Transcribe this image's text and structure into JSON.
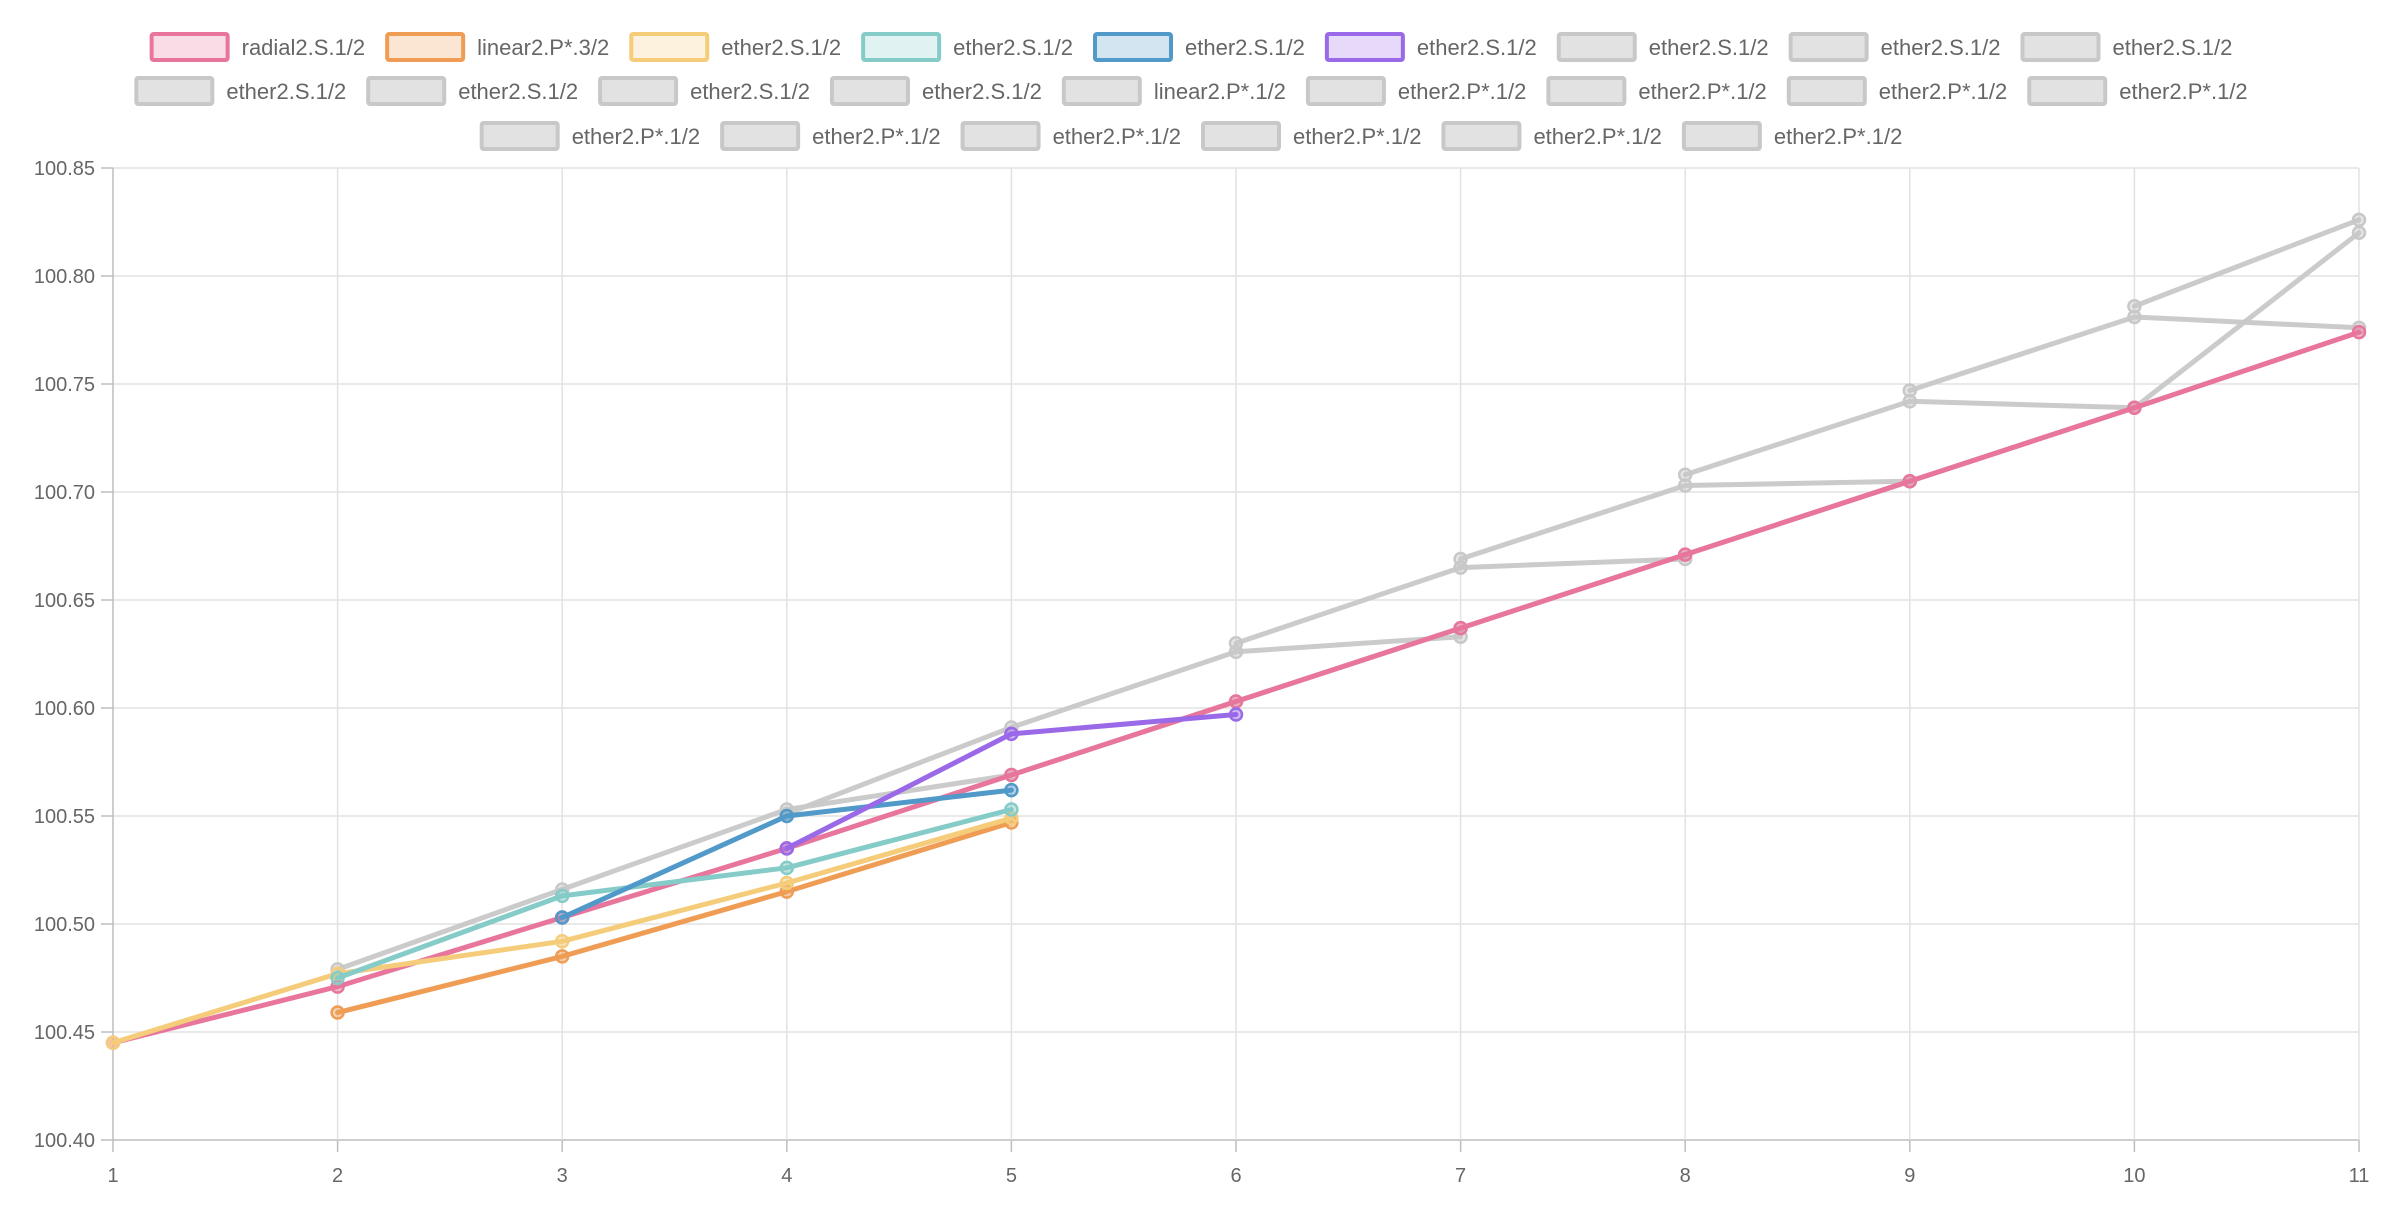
{
  "chart_data": {
    "type": "line",
    "x": [
      1,
      2,
      3,
      4,
      5,
      6,
      7,
      8,
      9,
      10,
      11
    ],
    "xlim": [
      1,
      11
    ],
    "ylim": [
      100.4,
      100.85
    ],
    "y_ticks": [
      "100.40",
      "100.45",
      "100.50",
      "100.55",
      "100.60",
      "100.65",
      "100.70",
      "100.75",
      "100.80",
      "100.85"
    ],
    "x_ticks": [
      "1",
      "2",
      "3",
      "4",
      "5",
      "6",
      "7",
      "8",
      "9",
      "10",
      "11"
    ],
    "grid": true,
    "legend_position": "top",
    "series": [
      {
        "name": "radial2.S.1/2",
        "color": "#e8769c",
        "active": true,
        "points": [
          [
            1,
            100.445
          ],
          [
            2,
            100.471
          ],
          [
            3,
            100.503
          ],
          [
            4,
            100.535
          ],
          [
            5,
            100.569
          ],
          [
            6,
            100.603
          ],
          [
            7,
            100.637
          ],
          [
            8,
            100.671
          ],
          [
            9,
            100.705
          ],
          [
            10,
            100.739
          ],
          [
            11,
            100.774
          ]
        ]
      },
      {
        "name": "linear2.P*.3/2",
        "color": "#ef9d55",
        "active": true,
        "points": [
          [
            2,
            100.459
          ],
          [
            3,
            100.485
          ],
          [
            4,
            100.515
          ],
          [
            5,
            100.547
          ]
        ]
      },
      {
        "name": "ether2.S.1/2",
        "color": "#f5cd7a",
        "active": true,
        "points": [
          [
            1,
            100.445
          ],
          [
            2,
            100.477
          ],
          [
            3,
            100.492
          ],
          [
            4,
            100.519
          ],
          [
            5,
            100.549
          ]
        ]
      },
      {
        "name": "ether2.S.1/2",
        "color": "#85cbc8",
        "active": true,
        "points": [
          [
            2,
            100.475
          ],
          [
            3,
            100.513
          ],
          [
            4,
            100.526
          ],
          [
            5,
            100.553
          ]
        ]
      },
      {
        "name": "ether2.S.1/2",
        "color": "#5099c9",
        "active": true,
        "points": [
          [
            3,
            100.503
          ],
          [
            4,
            100.55
          ],
          [
            5,
            100.562
          ]
        ]
      },
      {
        "name": "ether2.S.1/2",
        "color": "#9a69e8",
        "active": true,
        "points": [
          [
            4,
            100.535
          ],
          [
            5,
            100.588
          ],
          [
            6,
            100.597
          ]
        ]
      },
      {
        "name": "ether2.S.1/2",
        "color": "#c8c8c8",
        "active": false,
        "points": [
          [
            2,
            100.479
          ],
          [
            3,
            100.516
          ],
          [
            4,
            100.553
          ],
          [
            5,
            100.569
          ],
          [
            6,
            100.603
          ],
          [
            7,
            100.637
          ],
          [
            8,
            100.671
          ],
          [
            9,
            100.705
          ],
          [
            10,
            100.739
          ],
          [
            11,
            100.82
          ]
        ]
      },
      {
        "name": "ether2.S.1/2",
        "color": "#c8c8c8",
        "active": false,
        "points": [
          [
            4,
            100.551
          ],
          [
            5,
            100.591
          ],
          [
            6,
            100.626
          ],
          [
            7,
            100.633
          ]
        ]
      },
      {
        "name": "ether2.S.1/2",
        "color": "#c8c8c8",
        "active": false,
        "points": [
          [
            6,
            100.63
          ],
          [
            7,
            100.665
          ],
          [
            8,
            100.669
          ]
        ]
      },
      {
        "name": "ether2.S.1/2",
        "color": "#c8c8c8",
        "active": false,
        "points": [
          [
            7,
            100.669
          ],
          [
            8,
            100.703
          ],
          [
            9,
            100.705
          ]
        ]
      },
      {
        "name": "ether2.S.1/2",
        "color": "#c8c8c8",
        "active": false,
        "points": [
          [
            8,
            100.708
          ],
          [
            9,
            100.742
          ],
          [
            10,
            100.739
          ]
        ]
      },
      {
        "name": "ether2.S.1/2",
        "color": "#c8c8c8",
        "active": false,
        "points": [
          [
            9,
            100.747
          ],
          [
            10,
            100.781
          ],
          [
            11,
            100.776
          ]
        ]
      },
      {
        "name": "ether2.S.1/2",
        "color": "#c8c8c8",
        "active": false,
        "points": [
          [
            10,
            100.786
          ],
          [
            11,
            100.826
          ]
        ]
      },
      {
        "name": "linear2.P*.1/2",
        "color": "#c8c8c8",
        "active": false,
        "points": []
      },
      {
        "name": "ether2.P*.1/2",
        "color": "#c8c8c8",
        "active": false,
        "points": []
      },
      {
        "name": "ether2.P*.1/2",
        "color": "#c8c8c8",
        "active": false,
        "points": []
      },
      {
        "name": "ether2.P*.1/2",
        "color": "#c8c8c8",
        "active": false,
        "points": []
      },
      {
        "name": "ether2.P*.1/2",
        "color": "#c8c8c8",
        "active": false,
        "points": []
      },
      {
        "name": "ether2.P*.1/2",
        "color": "#c8c8c8",
        "active": false,
        "points": []
      },
      {
        "name": "ether2.P*.1/2",
        "color": "#c8c8c8",
        "active": false,
        "points": []
      },
      {
        "name": "ether2.P*.1/2",
        "color": "#c8c8c8",
        "active": false,
        "points": []
      },
      {
        "name": "ether2.P*.1/2",
        "color": "#c8c8c8",
        "active": false,
        "points": []
      },
      {
        "name": "ether2.P*.1/2",
        "color": "#c8c8c8",
        "active": false,
        "points": []
      },
      {
        "name": "ether2.P*.1/2",
        "color": "#c8c8c8",
        "active": false,
        "points": []
      }
    ]
  }
}
